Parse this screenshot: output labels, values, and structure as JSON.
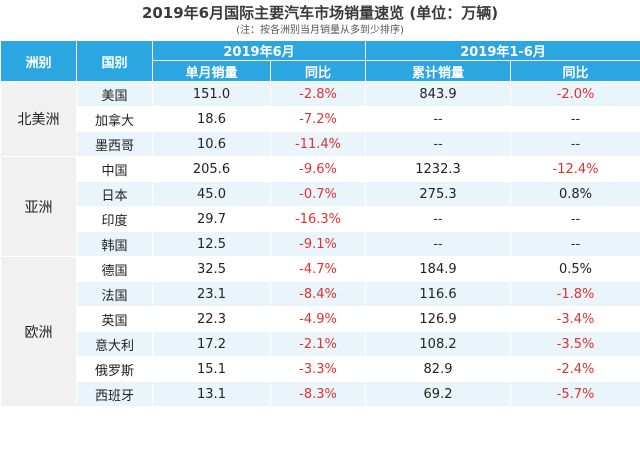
{
  "title": "2019年6月国际主要汽车市场销量速览 (单位：万辆)",
  "subtitle": "(注：按各洲别当月销量从多到少排序)",
  "header": {
    "region": "洲别",
    "country": "国别",
    "period_month": "2019年6月",
    "period_ytd": "2019年1-6月",
    "monthly_sales": "单月销量",
    "yoy": "同比",
    "cumulative_sales": "累计销量",
    "yoy2": "同比"
  },
  "regions": [
    {
      "name": "北美洲",
      "rows": [
        {
          "country": "美国",
          "month": "151.0",
          "month_yoy": "-2.8%",
          "ytd": "843.9",
          "ytd_yoy": "-2.0%"
        },
        {
          "country": "加拿大",
          "month": "18.6",
          "month_yoy": "-7.2%",
          "ytd": "--",
          "ytd_yoy": "--"
        },
        {
          "country": "墨西哥",
          "month": "10.6",
          "month_yoy": "-11.4%",
          "ytd": "--",
          "ytd_yoy": "--"
        }
      ]
    },
    {
      "name": "亚洲",
      "rows": [
        {
          "country": "中国",
          "month": "205.6",
          "month_yoy": "-9.6%",
          "ytd": "1232.3",
          "ytd_yoy": "-12.4%"
        },
        {
          "country": "日本",
          "month": "45.0",
          "month_yoy": "-0.7%",
          "ytd": "275.3",
          "ytd_yoy": "0.8%"
        },
        {
          "country": "印度",
          "month": "29.7",
          "month_yoy": "-16.3%",
          "ytd": "--",
          "ytd_yoy": "--"
        },
        {
          "country": "韩国",
          "month": "12.5",
          "month_yoy": "-9.1%",
          "ytd": "--",
          "ytd_yoy": "--"
        }
      ]
    },
    {
      "name": "欧洲",
      "rows": [
        {
          "country": "德国",
          "month": "32.5",
          "month_yoy": "-4.7%",
          "ytd": "184.9",
          "ytd_yoy": "0.5%"
        },
        {
          "country": "法国",
          "month": "23.1",
          "month_yoy": "-8.4%",
          "ytd": "116.6",
          "ytd_yoy": "-1.8%"
        },
        {
          "country": "英国",
          "month": "22.3",
          "month_yoy": "-4.9%",
          "ytd": "126.9",
          "ytd_yoy": "-3.4%"
        },
        {
          "country": "意大利",
          "month": "17.2",
          "month_yoy": "-2.1%",
          "ytd": "108.2",
          "ytd_yoy": "-3.5%"
        },
        {
          "country": "俄罗斯",
          "month": "15.1",
          "month_yoy": "-3.3%",
          "ytd": "82.9",
          "ytd_yoy": "-2.4%"
        },
        {
          "country": "西班牙",
          "month": "13.1",
          "month_yoy": "-8.3%",
          "ytd": "69.2",
          "ytd_yoy": "-5.7%"
        }
      ]
    }
  ]
}
